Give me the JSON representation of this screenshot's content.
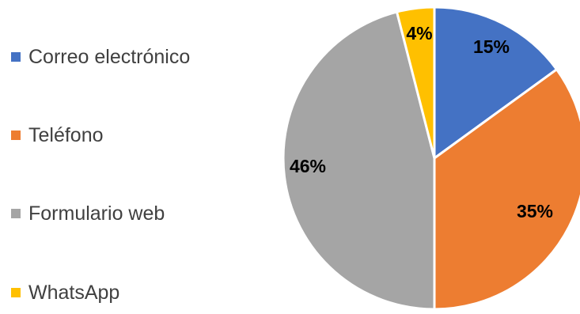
{
  "chart_data": {
    "type": "pie",
    "categories": [
      "Correo electrónico",
      "Teléfono",
      "Formulario web",
      "WhatsApp"
    ],
    "values": [
      15,
      35,
      46,
      4
    ],
    "data_labels": [
      "15%",
      "35%",
      "46%",
      "4%"
    ],
    "colors": [
      "#4472C4",
      "#ED7D31",
      "#A5A5A5",
      "#FFC000"
    ],
    "legend_position": "left",
    "start_angle": "12 o'clock",
    "direction": "clockwise"
  }
}
